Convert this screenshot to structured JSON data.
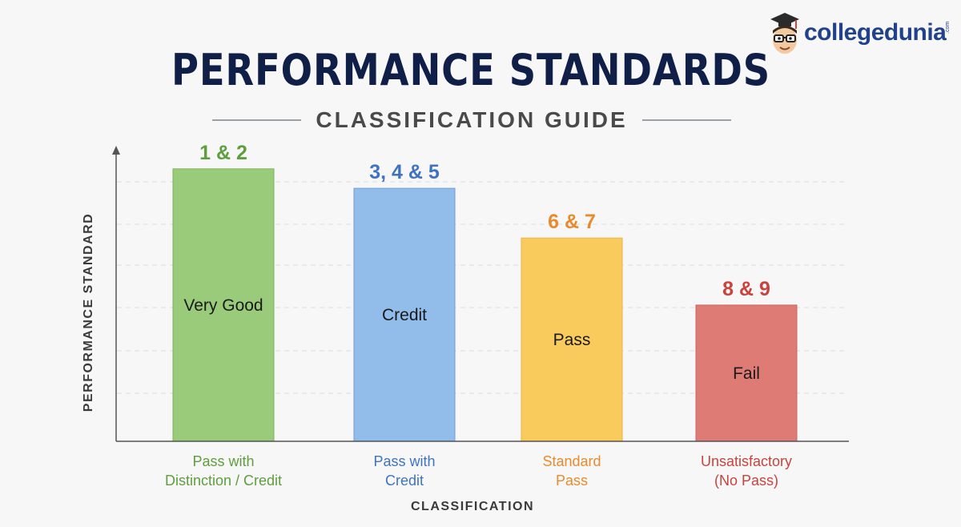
{
  "header": {
    "title": "PERFORMANCE STANDARDS",
    "subtitle": "CLASSIFICATION GUIDE"
  },
  "brand": {
    "name": "collegedunia",
    "suffix": ".com",
    "color": "#21418b"
  },
  "chart_data": {
    "type": "bar",
    "title": "PERFORMANCE STANDARDS",
    "subtitle": "CLASSIFICATION GUIDE",
    "xlabel": "CLASSIFICATION",
    "ylabel": "PERFORMANCE STANDARD",
    "ylim": [
      0,
      7
    ],
    "grid": true,
    "legend": "none",
    "bars": [
      {
        "category": [
          "Pass with",
          "Distinction / Credit"
        ],
        "value": 6.3,
        "top_label": "1 & 2",
        "inner_label": "Very Good",
        "fill": "#9acb7a",
        "stroke": "#7fb35d",
        "label_color": "#5f9e3e"
      },
      {
        "category": [
          "Pass with",
          "Credit"
        ],
        "value": 5.85,
        "top_label": "3, 4 & 5",
        "inner_label": "Credit",
        "fill": "#92bdeb",
        "stroke": "#6f9fd6",
        "label_color": "#3f73c2"
      },
      {
        "category": [
          "Standard",
          "Pass"
        ],
        "value": 4.7,
        "top_label": "6 & 7",
        "inner_label": "Pass",
        "fill": "#f8cb5c",
        "stroke": "#e6b445",
        "label_color": "#e88a2d"
      },
      {
        "category": [
          "Unsatisfactory",
          "(No Pass)"
        ],
        "value": 3.15,
        "top_label": "8 & 9",
        "inner_label": "Fail",
        "fill": "#de7b75",
        "stroke": "#c96660",
        "label_color": "#c9423c"
      }
    ]
  }
}
